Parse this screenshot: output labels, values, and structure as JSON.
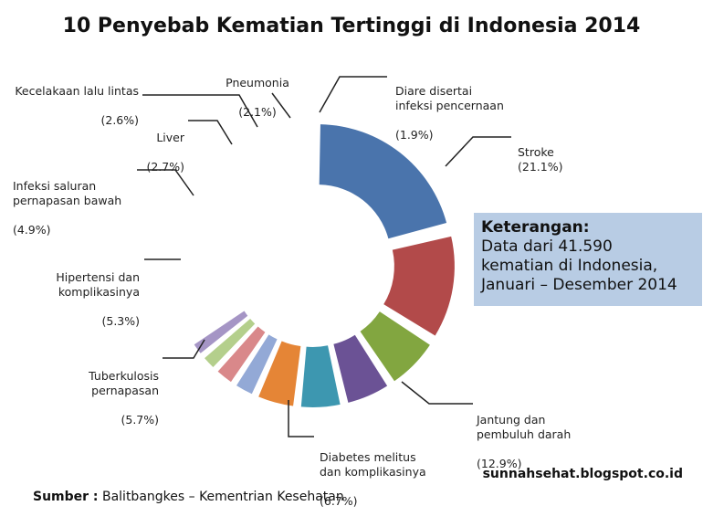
{
  "title": "10 Penyebab Kematian Tertinggi di Indonesia 2014",
  "chart_data": {
    "type": "pie",
    "variant": "donut (exploded segments)",
    "unit": "%",
    "slices": [
      {
        "label": "Stroke",
        "value": 21.1,
        "value_text": "(21.1%)",
        "color": "#4a74ac"
      },
      {
        "label": "Jantung dan\npembuluh darah",
        "value": 12.9,
        "value_text": "(12.9%)",
        "color": "#b24a4a"
      },
      {
        "label": "Diabetes melitus\ndan komplikasinya",
        "value": 6.7,
        "value_text": "(6.7%)",
        "color": "#82a640"
      },
      {
        "label": "Tuberkulosis\npernapasan",
        "value": 5.7,
        "value_text": "(5.7%)",
        "color": "#6b5295"
      },
      {
        "label": "Hipertensi dan\nkomplikasinya",
        "value": 5.3,
        "value_text": "(5.3%)",
        "color": "#3d97b0"
      },
      {
        "label": "Infeksi saluran\npernapasan bawah",
        "value": 4.9,
        "value_text": "(4.9%)",
        "color": "#e58536"
      },
      {
        "label": "Liver",
        "value": 2.7,
        "value_text": "(2.7%)",
        "color": "#93a9d6"
      },
      {
        "label": "Kecelakaan lalu lintas",
        "value": 2.6,
        "value_text": "(2.6%)",
        "color": "#d9888a"
      },
      {
        "label": "Pneumonia",
        "value": 2.1,
        "value_text": "(2.1%)",
        "color": "#b4cf8c"
      },
      {
        "label": "Diare disertai\ninfeksi pencernaan",
        "value": 1.9,
        "value_text": "(1.9%)",
        "color": "#a595c5"
      }
    ]
  },
  "note": {
    "heading": "Keterangan:",
    "body": "Data dari 41.590\nkematian di Indonesia,\nJanuari – Desember 2014"
  },
  "source": {
    "label": "Sumber :",
    "text": " Balitbangkes – Kementrian Kesehatan"
  },
  "website": "sunnahsehat.blogspot.co.id"
}
